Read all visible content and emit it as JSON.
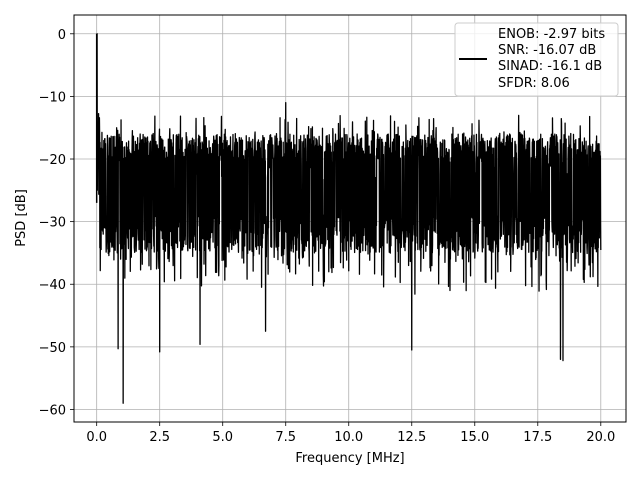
{
  "chart_data": {
    "type": "line",
    "xlabel": "Frequency [MHz]",
    "ylabel": "PSD [dB]",
    "xlim": [
      -0.9,
      21.0
    ],
    "ylim": [
      -62.0,
      3.0
    ],
    "x_ticks": [
      0.0,
      2.5,
      5.0,
      7.5,
      10.0,
      12.5,
      15.0,
      17.5,
      20.0
    ],
    "x_tick_labels": [
      "0.0",
      "2.5",
      "5.0",
      "7.5",
      "10.0",
      "12.5",
      "15.0",
      "17.5",
      "20.0"
    ],
    "y_ticks": [
      0,
      -10,
      -20,
      -30,
      -40,
      -50,
      -60
    ],
    "y_tick_labels": [
      "0",
      "−10",
      "−20",
      "−30",
      "−40",
      "−50",
      "−60"
    ],
    "grid": true,
    "legend_position": "upper right",
    "legend_lines": [
      "ENOB: -2.97 bits",
      "SNR: -16.07 dB",
      "SINAD: -16.1 dB",
      "SFDR: 8.06"
    ],
    "series": [
      {
        "color": "#000000",
        "peak": {
          "x": 0.0,
          "y": 0.0
        },
        "noise_floor_mean_db": -24.5,
        "noise_floor_upper_db": -16.0,
        "noise_floor_lower_db": -35.0,
        "max_noise_peak": {
          "x": 7.5,
          "y": -11.0
        },
        "dips": [
          {
            "x": 0.85,
            "y": -50.3
          },
          {
            "x": 1.05,
            "y": -59.0
          },
          {
            "x": 2.5,
            "y": -50.8
          },
          {
            "x": 4.1,
            "y": -49.6
          },
          {
            "x": 6.7,
            "y": -47.5
          },
          {
            "x": 12.5,
            "y": -50.5
          },
          {
            "x": 18.4,
            "y": -52.0
          },
          {
            "x": 18.5,
            "y": -52.2
          }
        ],
        "x_end": 20.0
      }
    ]
  }
}
